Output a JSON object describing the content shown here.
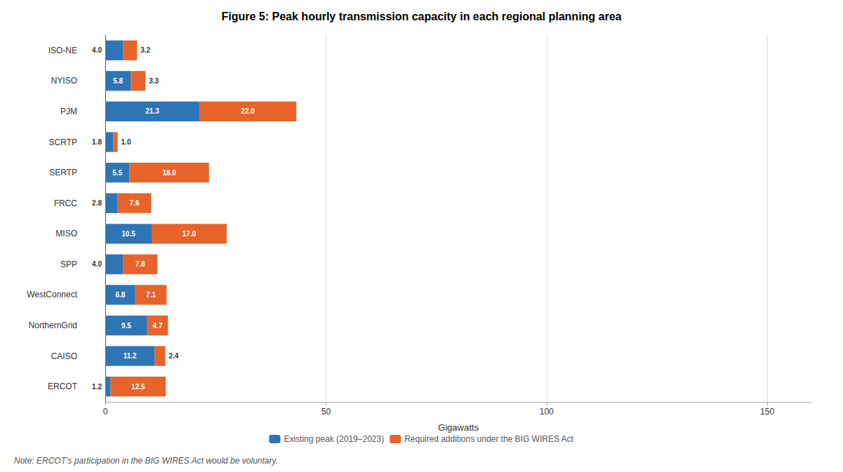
{
  "chart_data": {
    "type": "bar",
    "title": "Figure 5: Peak hourly transmission capacity in each regional planning area",
    "orientation": "horizontal",
    "stacked": true,
    "categories": [
      "ISO-NE",
      "NYISO",
      "PJM",
      "SCRTP",
      "SERTP",
      "FRCC",
      "MISO",
      "SPP",
      "WestConnect",
      "NorthernGrid",
      "CAISO",
      "ERCOT"
    ],
    "series": [
      {
        "name": "Existing peak (2019–2023)",
        "color": "#2E75B6",
        "values": [
          4.0,
          5.8,
          21.3,
          1.8,
          5.5,
          2.8,
          10.5,
          4.0,
          6.8,
          9.5,
          11.2,
          1.2
        ],
        "value_labels": [
          "4.0",
          "5.8",
          "21.3",
          "1.8",
          "5.5",
          "2.8",
          "10.5",
          "4.0",
          "6.8",
          "9.5",
          "11.2",
          "1.2"
        ]
      },
      {
        "name": "Required additions under the BIG WIRES Act",
        "color": "#E8632A",
        "values": [
          3.2,
          3.3,
          22.0,
          1.0,
          18.0,
          7.6,
          17.0,
          7.8,
          7.1,
          4.7,
          2.4,
          12.5
        ],
        "value_labels": [
          "3.2",
          "3.3",
          "22.0",
          "1.0",
          "18.0",
          "7.6",
          "17.0",
          "7.8",
          "7.1",
          "4.7",
          "2.4",
          "12.5"
        ]
      }
    ],
    "xlabel": "Gigawatts",
    "xlim": [
      0,
      160
    ],
    "xticks": [
      0,
      50,
      100,
      150
    ],
    "grid": true,
    "data_labels": true,
    "legend": "bottom",
    "annotations": [
      "Note: ERCOT’s participation in the BIG WIRES Act would be voluntary."
    ]
  }
}
